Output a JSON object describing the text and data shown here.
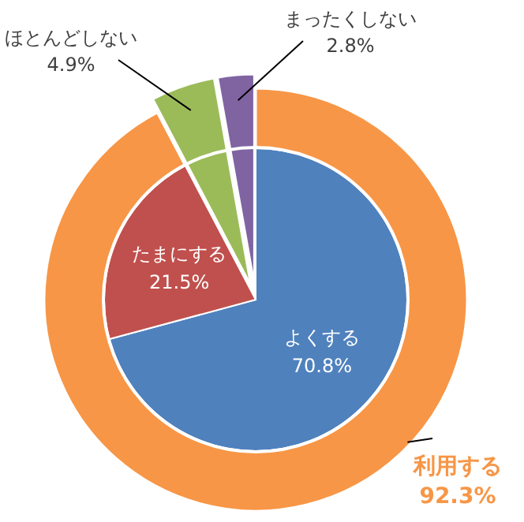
{
  "chart_data": [
    {
      "type": "pie",
      "categories": [
        "利用する",
        "ほとんどしない",
        "まったくしない"
      ],
      "values": [
        92.3,
        4.9,
        2.8
      ],
      "colors": [
        "#f79646",
        "#9bbb59",
        "#8064a2"
      ],
      "value_labels": [
        "92.3%",
        "4.9%",
        "2.8%"
      ]
    },
    {
      "type": "pie",
      "categories": [
        "よくする",
        "たまにする"
      ],
      "values": [
        70.8,
        21.5
      ],
      "colors": [
        "#4f81bd",
        "#c0504d"
      ],
      "value_labels": [
        "70.8%",
        "21.5%"
      ]
    }
  ]
}
